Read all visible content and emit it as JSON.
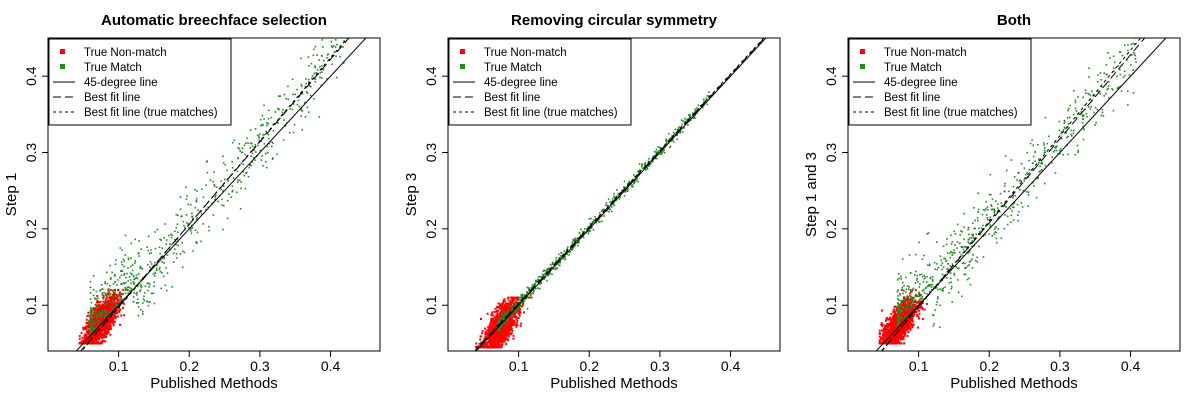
{
  "figure": {
    "colors": {
      "non_match": "#ff0000",
      "match": "#228b22",
      "line": "#000000"
    },
    "legend": {
      "items": [
        "True Non-match",
        "True Match",
        "45-degree line",
        "Best fit line",
        "Best fit line (true matches)"
      ],
      "placement": "top-left"
    }
  },
  "chart_data": [
    {
      "type": "scatter",
      "title": "Automatic breechface selection",
      "xlabel": "Published Methods",
      "ylabel": "Step 1",
      "xlim": [
        0.0,
        0.47
      ],
      "ylim": [
        0.04,
        0.45
      ],
      "xticks": [
        "0.1",
        "0.2",
        "0.3",
        "0.4"
      ],
      "yticks": [
        "0.1",
        "0.2",
        "0.3",
        "0.4"
      ],
      "grid": false,
      "series": [
        {
          "name": "True Non-match",
          "distribution": "dense cluster",
          "center": [
            0.075,
            0.078
          ],
          "spread_x": [
            0.045,
            0.13
          ],
          "spread_y": [
            0.05,
            0.12
          ]
        },
        {
          "name": "True Match",
          "distribution": "band above 45-degree line",
          "x_range": [
            0.06,
            0.42
          ],
          "y_range": [
            0.06,
            0.47
          ]
        }
      ],
      "lines": [
        {
          "name": "45-degree line",
          "intercept": 0,
          "slope": 1.0
        },
        {
          "name": "Best fit line",
          "intercept": -0.01,
          "slope": 1.08
        },
        {
          "name": "Best fit line (true matches)",
          "intercept": -0.012,
          "slope": 1.09
        }
      ]
    },
    {
      "type": "scatter",
      "title": "Removing circular symmetry",
      "xlabel": "Published Methods",
      "ylabel": "Step 3",
      "xlim": [
        0.0,
        0.47
      ],
      "ylim": [
        0.04,
        0.45
      ],
      "xticks": [
        "0.1",
        "0.2",
        "0.3",
        "0.4"
      ],
      "yticks": [
        "0.1",
        "0.2",
        "0.3",
        "0.4"
      ],
      "grid": false,
      "series": [
        {
          "name": "True Non-match",
          "distribution": "dense cluster",
          "center": [
            0.075,
            0.072
          ],
          "spread_x": [
            0.04,
            0.14
          ],
          "spread_y": [
            0.045,
            0.11
          ]
        },
        {
          "name": "True Match",
          "distribution": "tight band on 45-degree line",
          "x_range": [
            0.07,
            0.37
          ],
          "y_range": [
            0.07,
            0.38
          ]
        }
      ],
      "lines": [
        {
          "name": "45-degree line",
          "intercept": 0,
          "slope": 1.0
        },
        {
          "name": "Best fit line",
          "intercept": 0.002,
          "slope": 1.0
        },
        {
          "name": "Best fit line (true matches)",
          "intercept": 0.003,
          "slope": 1.0
        }
      ]
    },
    {
      "type": "scatter",
      "title": "Both",
      "xlabel": "Published Methods",
      "ylabel": "Step 1 and 3",
      "xlim": [
        0.0,
        0.47
      ],
      "ylim": [
        0.04,
        0.45
      ],
      "xticks": [
        "0.1",
        "0.2",
        "0.3",
        "0.4"
      ],
      "yticks": [
        "0.1",
        "0.2",
        "0.3",
        "0.4"
      ],
      "grid": false,
      "series": [
        {
          "name": "True Non-match",
          "distribution": "dense cluster",
          "center": [
            0.072,
            0.074
          ],
          "spread_x": [
            0.045,
            0.12
          ],
          "spread_y": [
            0.05,
            0.12
          ]
        },
        {
          "name": "True Match",
          "distribution": "band above 45-degree line",
          "x_range": [
            0.07,
            0.41
          ],
          "y_range": [
            0.06,
            0.46
          ]
        }
      ],
      "lines": [
        {
          "name": "45-degree line",
          "intercept": 0,
          "slope": 1.0
        },
        {
          "name": "Best fit line",
          "intercept": -0.012,
          "slope": 1.1
        },
        {
          "name": "Best fit line (true matches)",
          "intercept": -0.014,
          "slope": 1.12
        }
      ]
    }
  ]
}
